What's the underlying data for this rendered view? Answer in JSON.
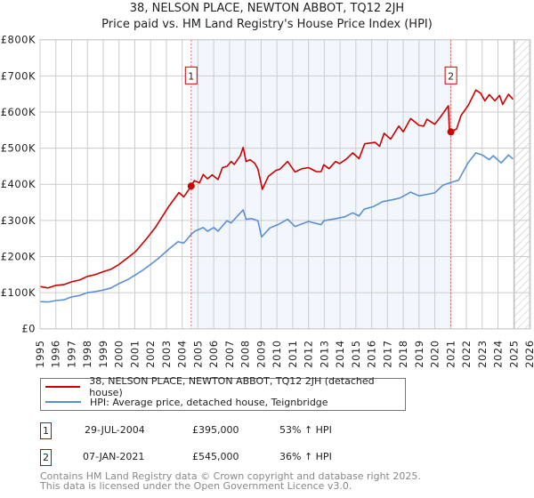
{
  "title": "38, NELSON PLACE, NEWTON ABBOT, TQ12 2JH",
  "subtitle": "Price paid vs. HM Land Registry's House Price Index (HPI)",
  "colors": {
    "property": "#cc0000",
    "hpi": "#5b8fd4",
    "shade": "#f2f6fd",
    "grid": "#cccccc"
  },
  "chart_data": {
    "type": "line",
    "title": "38, NELSON PLACE, NEWTON ABBOT, TQ12 2JH",
    "xlabel": "",
    "ylabel": "",
    "xlim": [
      1995,
      2026
    ],
    "ylim": [
      0,
      800000
    ],
    "grid": true,
    "x_ticks": [
      "1995",
      "1996",
      "1997",
      "1998",
      "1999",
      "2000",
      "2001",
      "2002",
      "2003",
      "2004",
      "2005",
      "2006",
      "2007",
      "2008",
      "2009",
      "2010",
      "2011",
      "2012",
      "2013",
      "2014",
      "2015",
      "2016",
      "2017",
      "2018",
      "2019",
      "2020",
      "2021",
      "2022",
      "2023",
      "2024",
      "2025",
      "2026"
    ],
    "y_ticks": [
      {
        "v": 0,
        "label": "£0"
      },
      {
        "v": 100000,
        "label": "£100K"
      },
      {
        "v": 200000,
        "label": "£200K"
      },
      {
        "v": 300000,
        "label": "£300K"
      },
      {
        "v": 400000,
        "label": "£400K"
      },
      {
        "v": 500000,
        "label": "£500K"
      },
      {
        "v": 600000,
        "label": "£600K"
      },
      {
        "v": 700000,
        "label": "£700K"
      },
      {
        "v": 800000,
        "label": "£800K"
      }
    ],
    "shaded_range": [
      2004.57,
      2021.02
    ],
    "forecast_hatch_from": 2025.03,
    "series": [
      {
        "name": "38, NELSON PLACE, NEWTON ABBOT, TQ12 2JH (detached house)",
        "x": [
          1995,
          1995.5,
          1996,
          1996.5,
          1997,
          1997.5,
          1998,
          1998.5,
          1999,
          1999.5,
          2000,
          2000.5,
          2001,
          2001.2,
          2001.76,
          2002.3,
          2003.17,
          2003.8,
          2004.1,
          2004.57,
          2004.77,
          2005.1,
          2005.33,
          2005.6,
          2005.9,
          2006.27,
          2006.55,
          2006.85,
          2007.1,
          2007.3,
          2007.68,
          2007.86,
          2008.05,
          2008.3,
          2008.6,
          2008.8,
          2009.08,
          2009.46,
          2009.93,
          2010.2,
          2010.68,
          2011.15,
          2011.6,
          2012.0,
          2012.5,
          2012.8,
          2012.97,
          2013.3,
          2013.72,
          2013.97,
          2014.4,
          2014.8,
          2015.2,
          2015.56,
          2016.22,
          2016.5,
          2016.79,
          2017.2,
          2017.72,
          2018.0,
          2018.47,
          2019.0,
          2019.3,
          2019.5,
          2020.0,
          2020.35,
          2020.86,
          2020.93,
          2021.02,
          2021.38,
          2021.66,
          2022.13,
          2022.6,
          2022.9,
          2023.17,
          2023.45,
          2023.8,
          2024.1,
          2024.3,
          2024.67,
          2024.95
        ],
        "y": [
          117000,
          113000,
          120000,
          122000,
          130000,
          135000,
          145000,
          150000,
          158000,
          165000,
          178000,
          195000,
          212000,
          221000,
          250000,
          280000,
          340000,
          377000,
          365000,
          395000,
          410000,
          404000,
          427000,
          415000,
          426000,
          413000,
          446000,
          450000,
          463000,
          455000,
          479000,
          502000,
          463000,
          468000,
          458000,
          442000,
          386000,
          422000,
          438000,
          442000,
          463000,
          434000,
          443000,
          446000,
          435000,
          435000,
          454000,
          443000,
          463000,
          457000,
          470000,
          487000,
          471000,
          512000,
          516000,
          505000,
          541000,
          525000,
          561000,
          545000,
          582000,
          563000,
          561000,
          580000,
          566000,
          586000,
          617000,
          545000,
          545000,
          553000,
          590000,
          619000,
          661000,
          652000,
          631000,
          648000,
          631000,
          646000,
          621000,
          649000,
          635000
        ]
      },
      {
        "name": "HPI: Average price, detached house, Teignbridge",
        "x": [
          1995,
          1995.5,
          1996,
          1996.5,
          1997,
          1997.5,
          1998,
          1998.5,
          1999,
          1999.5,
          2000,
          2000.5,
          2001,
          2001.5,
          2002,
          2002.5,
          2003.17,
          2003.74,
          2004.1,
          2004.58,
          2004.8,
          2005.33,
          2005.6,
          2006.0,
          2006.27,
          2006.83,
          2007.1,
          2007.86,
          2008.05,
          2008.4,
          2008.8,
          2009.03,
          2009.55,
          2010.1,
          2010.68,
          2011.15,
          2012.0,
          2012.8,
          2012.97,
          2013.75,
          2014.3,
          2014.8,
          2015.2,
          2015.52,
          2016.1,
          2016.7,
          2017.3,
          2017.8,
          2018.47,
          2019.0,
          2019.5,
          2020.0,
          2020.5,
          2021.0,
          2021.5,
          2022.1,
          2022.6,
          2023.0,
          2023.45,
          2023.7,
          2024.2,
          2024.67,
          2024.95
        ],
        "y": [
          75000,
          74000,
          78000,
          80000,
          88000,
          92000,
          100000,
          103000,
          107000,
          113000,
          125000,
          135000,
          148000,
          162000,
          178000,
          195000,
          221000,
          241000,
          237000,
          262000,
          270000,
          280000,
          270000,
          280000,
          270000,
          299000,
          293000,
          329000,
          303000,
          305000,
          299000,
          254000,
          279000,
          289000,
          303000,
          283000,
          297000,
          288000,
          299000,
          305000,
          310000,
          321000,
          312000,
          331000,
          338000,
          352000,
          357000,
          362000,
          378000,
          368000,
          372000,
          376000,
          397000,
          405000,
          411000,
          459000,
          487000,
          481000,
          468000,
          479000,
          459000,
          481000,
          470000
        ]
      }
    ],
    "annotations": [
      {
        "label": "1",
        "x": 2004.57,
        "y": 395000,
        "box_y": 700000
      },
      {
        "label": "2",
        "x": 2021.02,
        "y": 545000,
        "box_y": 700000
      }
    ]
  },
  "legend": {
    "property": "38, NELSON PLACE, NEWTON ABBOT, TQ12 2JH (detached house)",
    "hpi": "HPI: Average price, detached house, Teignbridge"
  },
  "transactions": [
    {
      "id": "1",
      "date": "29-JUL-2004",
      "price": "£395,000",
      "hpi": "53% ↑ HPI"
    },
    {
      "id": "2",
      "date": "07-JAN-2021",
      "price": "£545,000",
      "hpi": "36% ↑ HPI"
    }
  ],
  "footer": {
    "line1": "Contains HM Land Registry data © Crown copyright and database right 2025.",
    "line2": "This data is licensed under the Open Government Licence v3.0."
  }
}
